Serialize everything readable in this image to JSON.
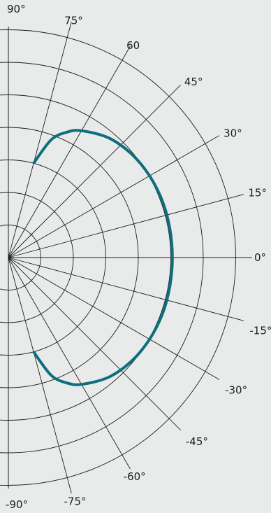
{
  "chart_data": {
    "type": "polar",
    "theta_range": [
      -90,
      90
    ],
    "radial_range": [
      0,
      7.5
    ],
    "rings": [
      1,
      2,
      3,
      4,
      5,
      6,
      7
    ],
    "rays": [
      90,
      75,
      60,
      45,
      30,
      15,
      0,
      -15,
      -30,
      -45,
      -60,
      -75,
      -90
    ],
    "tick_labels": [
      {
        "angle": 90,
        "text": "90°"
      },
      {
        "angle": 75,
        "text": "75°"
      },
      {
        "angle": 60,
        "text": "60"
      },
      {
        "angle": 45,
        "text": "45°"
      },
      {
        "angle": 30,
        "text": "30°"
      },
      {
        "angle": 15,
        "text": "15°"
      },
      {
        "angle": 0,
        "text": "0°"
      },
      {
        "angle": -15,
        "text": "-15°"
      },
      {
        "angle": -30,
        "text": "-30°"
      },
      {
        "angle": -45,
        "text": "-45°"
      },
      {
        "angle": -60,
        "text": "-60°"
      },
      {
        "angle": -75,
        "text": "-75°"
      },
      {
        "angle": -90,
        "text": "-90°"
      }
    ],
    "grid": true,
    "series": [
      {
        "color": "#0e6e7c",
        "points": [
          {
            "theta": 75,
            "r": 3.0
          },
          {
            "theta": 70,
            "r": 3.85
          },
          {
            "theta": 65,
            "r": 4.25
          },
          {
            "theta": 60,
            "r": 4.5
          },
          {
            "theta": 50,
            "r": 4.8
          },
          {
            "theta": 40,
            "r": 4.95
          },
          {
            "theta": 30,
            "r": 5.02
          },
          {
            "theta": 20,
            "r": 5.05
          },
          {
            "theta": 10,
            "r": 5.05
          },
          {
            "theta": 0,
            "r": 5.05
          },
          {
            "theta": -10,
            "r": 5.05
          },
          {
            "theta": -20,
            "r": 5.05
          },
          {
            "theta": -30,
            "r": 5.02
          },
          {
            "theta": -40,
            "r": 4.95
          },
          {
            "theta": -50,
            "r": 4.8
          },
          {
            "theta": -60,
            "r": 4.5
          },
          {
            "theta": -65,
            "r": 4.25
          },
          {
            "theta": -70,
            "r": 3.85
          },
          {
            "theta": -75,
            "r": 3.0
          }
        ]
      }
    ]
  }
}
